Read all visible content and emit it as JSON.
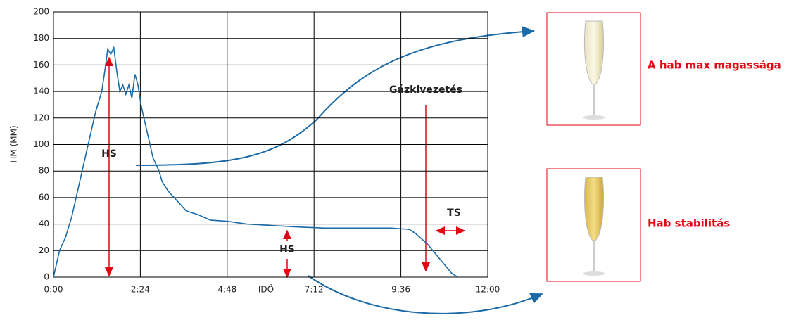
{
  "chart_data": {
    "type": "line",
    "y_label": "HM (MM)",
    "x_label": "IDŐ",
    "color": "#1b6aa8",
    "grid": true,
    "xlim": [
      0,
      720
    ],
    "xticks": [
      {
        "value": 0,
        "label": "0:00"
      },
      {
        "value": 144,
        "label": "2:24"
      },
      {
        "value": 288,
        "label": "4:48"
      },
      {
        "value": 432,
        "label": "7:12"
      },
      {
        "value": 576,
        "label": "9:36"
      },
      {
        "value": 720,
        "label": "12:00"
      }
    ],
    "ylim": [
      0,
      200
    ],
    "yticks": [
      0,
      20,
      40,
      60,
      80,
      100,
      120,
      140,
      160,
      180,
      200
    ],
    "x": [
      0,
      5,
      10,
      20,
      30,
      40,
      50,
      60,
      70,
      80,
      85,
      90,
      95,
      100,
      105,
      110,
      115,
      120,
      125,
      130,
      135,
      140,
      145,
      150,
      155,
      160,
      165,
      170,
      175,
      180,
      190,
      200,
      210,
      220,
      240,
      260,
      290,
      320,
      360,
      400,
      450,
      500,
      560,
      590,
      600,
      620,
      640,
      660,
      670
    ],
    "values": [
      0,
      10,
      20,
      30,
      45,
      65,
      85,
      105,
      125,
      140,
      155,
      172,
      168,
      173,
      155,
      140,
      145,
      138,
      145,
      135,
      153,
      145,
      130,
      120,
      110,
      100,
      90,
      85,
      80,
      72,
      65,
      60,
      55,
      50,
      47,
      43,
      42,
      40,
      39,
      38,
      37,
      37,
      37,
      36,
      33,
      25,
      14,
      3,
      0
    ],
    "annotations": [
      "HS",
      "HS",
      "Gázkivezetés",
      "TS"
    ],
    "side_labels": [
      "A hab max magassága",
      "Hab stabilitás"
    ]
  }
}
